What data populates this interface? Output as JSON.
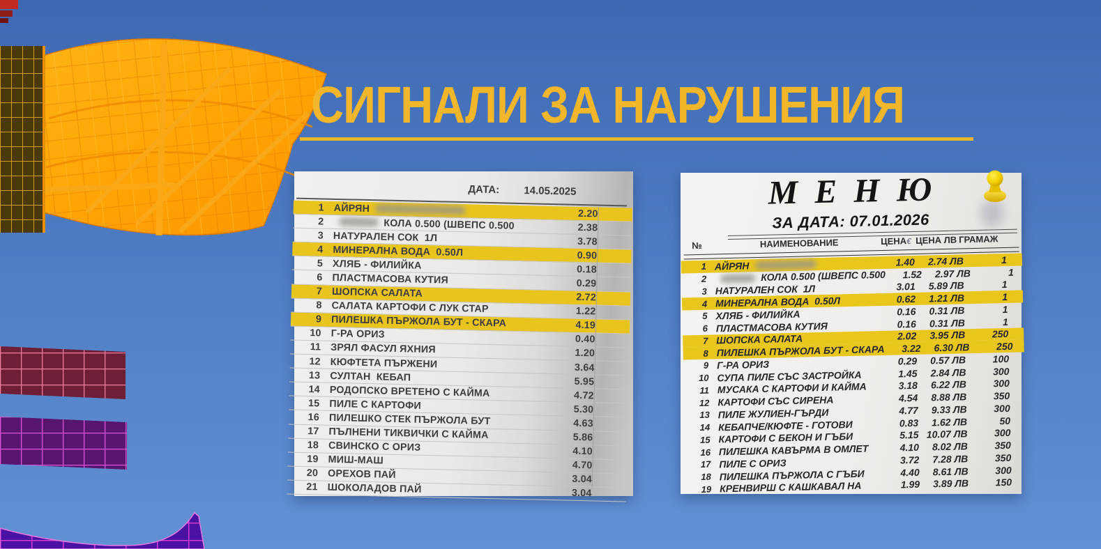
{
  "slide": {
    "title": "СИГНАЛИ ЗА НАРУШЕНИЯ"
  },
  "receipt_left": {
    "date_label": "ДАТА:",
    "date_value": "14.05.2025",
    "items": [
      {
        "no": "1",
        "name": "АЙРЯН",
        "redacted_after": 130,
        "price": "2.20",
        "highlight": true
      },
      {
        "no": "2",
        "redacted_before": 56,
        "name": "КОЛА 0.500 (ШВЕПС 0.500",
        "price": "2.38"
      },
      {
        "no": "3",
        "name": "НАТУРАЛЕН СОК  1Л",
        "price": "3.78"
      },
      {
        "no": "4",
        "name": "МИНЕРАЛНА ВОДА  0.50Л",
        "price": "0.90",
        "highlight": true
      },
      {
        "no": "5",
        "name": "ХЛЯБ - ФИЛИЙКА",
        "price": "0.18"
      },
      {
        "no": "6",
        "name": "ПЛАСТМАСОВА КУТИЯ",
        "price": "0.29"
      },
      {
        "no": "7",
        "name": "ШОПСКА САЛАТА",
        "price": "2.72",
        "highlight": true
      },
      {
        "no": "8",
        "name": "САЛАТА КАРТОФИ С ЛУК СТАР",
        "price": "1.22"
      },
      {
        "no": "9",
        "name": "ПИЛЕШКА ПЪРЖОЛА БУТ - СКАРА",
        "price": "4.19",
        "highlight": true
      },
      {
        "no": "10",
        "name": "Г-РА ОРИЗ",
        "price": "0.40"
      },
      {
        "no": "11",
        "name": "ЗРЯЛ ФАСУЛ ЯХНИЯ",
        "price": "1.20"
      },
      {
        "no": "12",
        "name": "КЮФТЕТА ПЪРЖЕНИ",
        "price": "3.64"
      },
      {
        "no": "13",
        "name": "СУЛТАН  КЕБАП",
        "price": "5.95"
      },
      {
        "no": "14",
        "name": "РОДОПСКО ВРЕТЕНО С КАЙМА",
        "price": "4.72"
      },
      {
        "no": "15",
        "name": "ПИЛЕ С КАРТОФИ",
        "price": "5.30"
      },
      {
        "no": "16",
        "name": "ПИЛЕШКО СТЕК ПЪРЖОЛА БУТ",
        "price": "4.63"
      },
      {
        "no": "17",
        "name": "ПЪЛНЕНИ ТИКВИЧКИ С КАЙМА",
        "price": "5.86"
      },
      {
        "no": "18",
        "name": "СВИНСКО С ОРИЗ",
        "price": "4.10"
      },
      {
        "no": "19",
        "name": "МИШ-МАШ",
        "price": "4.70"
      },
      {
        "no": "20",
        "name": "ОРЕХОВ ПАЙ",
        "price": "3.04"
      },
      {
        "no": "21",
        "name": "ШОКОЛАДОВ ПАЙ",
        "price": "3.04"
      }
    ]
  },
  "menu_right": {
    "title": "МЕНЮ",
    "subtitle": "ЗА ДАТА: 07.01.2026",
    "header": {
      "no": "№",
      "name": "НАИМЕНОВАНИЕ",
      "price_eur": "ЦЕНА",
      "eur_symbol": "€",
      "price_lv": "ЦЕНА ЛВ",
      "grams": "ГРАМАЖ"
    },
    "items": [
      {
        "no": "1",
        "name": "АЙРЯН",
        "redacted_after": 88,
        "price_eur": "1.40",
        "price_lv": "2.74 ЛВ",
        "grams": "1",
        "highlight": true
      },
      {
        "no": "2",
        "redacted_before": 50,
        "name": "КОЛА 0.500 (ШВЕПС 0.500",
        "price_eur": "1.52",
        "price_lv": "2.97 ЛВ",
        "grams": "1"
      },
      {
        "no": "3",
        "name": "НАТУРАЛЕН СОК  1Л",
        "price_eur": "3.01",
        "price_lv": "5.89 ЛВ",
        "grams": "1"
      },
      {
        "no": "4",
        "name": "МИНЕРАЛНА ВОДА  0.50Л",
        "price_eur": "0.62",
        "price_lv": "1.21 ЛВ",
        "grams": "1",
        "highlight": true
      },
      {
        "no": "5",
        "name": "ХЛЯБ - ФИЛИЙКА",
        "price_eur": "0.16",
        "price_lv": "0.31 ЛВ",
        "grams": "1"
      },
      {
        "no": "6",
        "name": "ПЛАСТМАСОВА КУТИЯ",
        "price_eur": "0.16",
        "price_lv": "0.31 ЛВ",
        "grams": "1"
      },
      {
        "no": "7",
        "name": "ШОПСКА САЛАТА",
        "price_eur": "2.02",
        "price_lv": "3.95 ЛВ",
        "grams": "250",
        "highlight": true
      },
      {
        "no": "8",
        "name": "ПИЛЕШКА ПЪРЖОЛА БУТ - СКАРА",
        "price_eur": "3.22",
        "price_lv": "6.30 ЛВ",
        "grams": "250",
        "highlight": true
      },
      {
        "no": "9",
        "name": "Г-РА ОРИЗ",
        "price_eur": "0.29",
        "price_lv": "0.57 ЛВ",
        "grams": "100"
      },
      {
        "no": "10",
        "name": "СУПА ПИЛЕ СЪС ЗАСТРОЙКА",
        "price_eur": "1.45",
        "price_lv": "2.84 ЛВ",
        "grams": "300"
      },
      {
        "no": "11",
        "name": "МУСАКА С КАРТОФИ И КАЙМА",
        "price_eur": "3.18",
        "price_lv": "6.22 ЛВ",
        "grams": "300"
      },
      {
        "no": "12",
        "name": "КАРТОФИ СЪС СИРЕНА",
        "price_eur": "4.54",
        "price_lv": "8.88 ЛВ",
        "grams": "350"
      },
      {
        "no": "13",
        "name": "ПИЛЕ ЖУЛИЕН-ГЪРДИ",
        "price_eur": "4.77",
        "price_lv": "9.33 ЛВ",
        "grams": "300"
      },
      {
        "no": "14",
        "name": "КЕБАПЧЕ/КЮФТЕ - ГОТОВИ",
        "price_eur": "0.83",
        "price_lv": "1.62 ЛВ",
        "grams": "50"
      },
      {
        "no": "15",
        "name": "КАРТОФИ С БЕКОН И ГЪБИ",
        "price_eur": "5.15",
        "price_lv": "10.07 ЛВ",
        "grams": "300"
      },
      {
        "no": "16",
        "name": "ПИЛЕШКА КАВЪРМА В ОМЛЕТ",
        "price_eur": "4.10",
        "price_lv": "8.02 ЛВ",
        "grams": "350"
      },
      {
        "no": "17",
        "name": "ПИЛЕ С ОРИЗ",
        "price_eur": "3.72",
        "price_lv": "7.28 ЛВ",
        "grams": "350"
      },
      {
        "no": "18",
        "name": "ПИЛЕШКА ПЪРЖОЛА С ГЪБИ",
        "price_eur": "4.40",
        "price_lv": "8.61 ЛВ",
        "grams": "300"
      },
      {
        "no": "19",
        "name": "КРЕНВИРШ С КАШКАВАЛ НА",
        "price_eur": "1.99",
        "price_lv": "3.89 ЛВ",
        "grams": "150"
      }
    ]
  },
  "colors": {
    "title_yellow": "#F2B62B",
    "highlight_yellow": "#E8C41D",
    "sky_top": "#3E69B2",
    "sky_bottom": "#6190D4",
    "pushpin_yellow": "#F5D400"
  }
}
